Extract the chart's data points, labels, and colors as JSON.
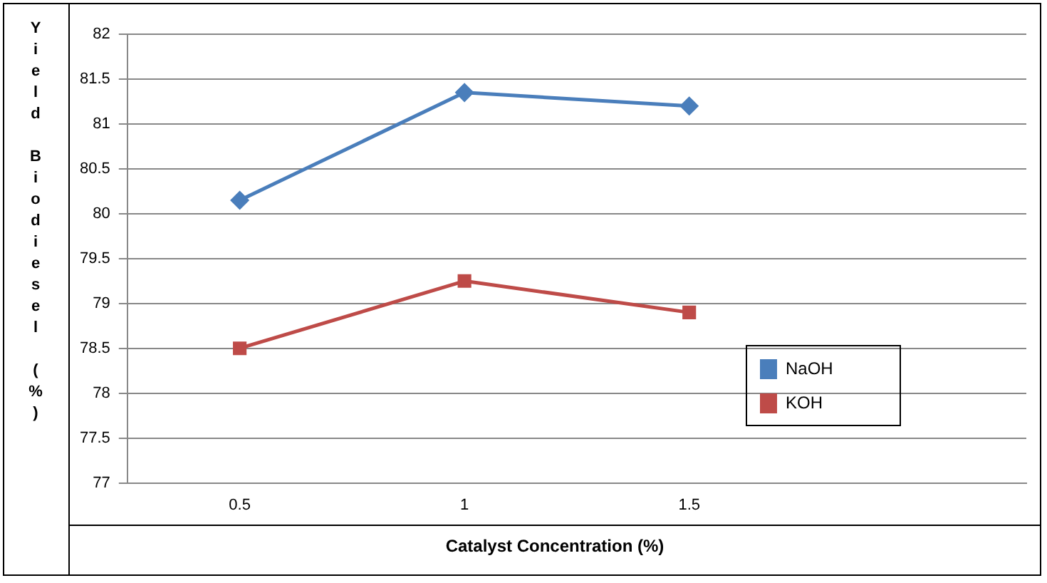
{
  "chart_data": {
    "type": "line",
    "xlabel": "Catalyst Concentration (%)",
    "ylabel": "Yield Biodiesel (%)",
    "categories": [
      "0.5",
      "1",
      "1.5",
      null
    ],
    "series": [
      {
        "name": "NaOH",
        "color": "#4a7ebb",
        "marker": "diamond",
        "values": [
          80.15,
          81.35,
          81.2,
          null
        ]
      },
      {
        "name": "KOH",
        "color": "#be4b48",
        "marker": "square",
        "values": [
          78.5,
          79.25,
          78.9,
          null
        ]
      }
    ],
    "ylim": [
      77,
      82
    ],
    "yticks": [
      77,
      77.5,
      78,
      78.5,
      79,
      79.5,
      80,
      80.5,
      81,
      81.5,
      82
    ],
    "grid": "y",
    "legend": "right",
    "line_style": "solid"
  }
}
